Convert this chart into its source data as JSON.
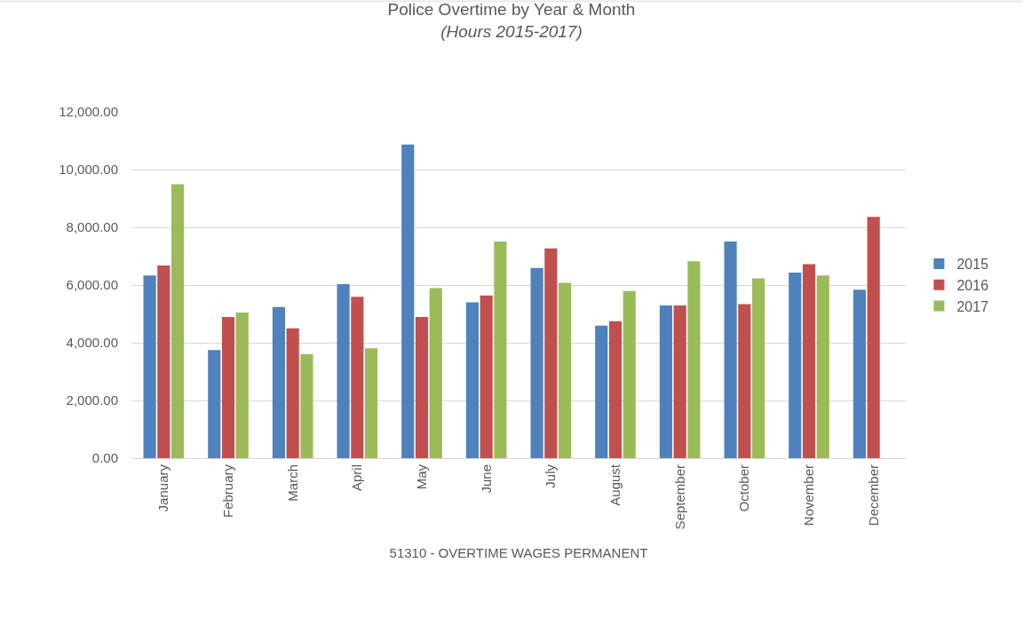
{
  "chart_data": {
    "type": "bar",
    "title": "Police Overtime by Year & Month",
    "subtitle": "(Hours 2015-2017)",
    "xlabel": "51310 - OVERTIME WAGES PERMANENT",
    "categories": [
      "January",
      "February",
      "March",
      "April",
      "May",
      "June",
      "July",
      "August",
      "September",
      "October",
      "November",
      "December"
    ],
    "series": [
      {
        "name": "2015",
        "color": "#4f81bd",
        "values": [
          6330,
          3750,
          5240,
          6030,
          10870,
          5400,
          6590,
          4590,
          5290,
          7510,
          6430,
          5840
        ]
      },
      {
        "name": "2016",
        "color": "#c0504d",
        "values": [
          6680,
          4890,
          4500,
          5590,
          4890,
          5640,
          7270,
          4750,
          5290,
          5340,
          6720,
          8360
        ]
      },
      {
        "name": "2017",
        "color": "#9bbb59",
        "values": [
          9490,
          5050,
          3610,
          3810,
          5890,
          7510,
          6080,
          5790,
          6820,
          6230,
          6330,
          null
        ]
      }
    ],
    "ylim": [
      0,
      12000
    ],
    "yticks": [
      {
        "value": 0,
        "label": "0.00"
      },
      {
        "value": 2000,
        "label": "2,000.00"
      },
      {
        "value": 4000,
        "label": "4,000.00"
      },
      {
        "value": 6000,
        "label": "6,000.00"
      },
      {
        "value": 8000,
        "label": "8,000.00"
      },
      {
        "value": 10000,
        "label": "10,000.00"
      },
      {
        "value": 12000,
        "label": "12,000.00"
      }
    ],
    "grid": "y",
    "legend": "right"
  }
}
